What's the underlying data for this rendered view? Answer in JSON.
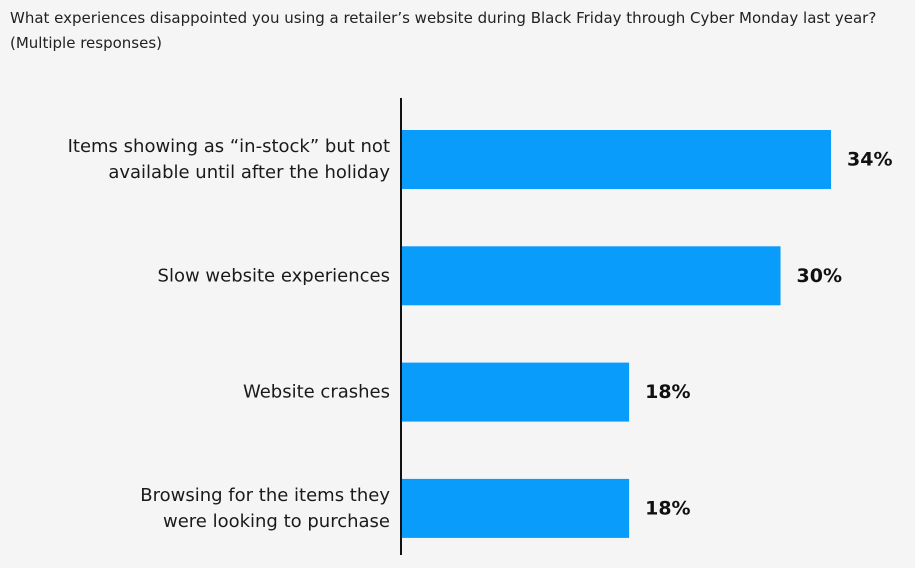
{
  "title": {
    "line1": "What experiences disappointed you using a retailer’s website during Black Friday through Cyber Monday last year?",
    "line2": "(Multiple responses)"
  },
  "colors": {
    "bar": "#0a9cfa",
    "axis": "#111111",
    "label": "#1a1a1a",
    "value": "#111111"
  },
  "chart_data": {
    "type": "bar",
    "orientation": "horizontal",
    "title": "What experiences disappointed you using a retailer’s website during Black Friday through Cyber Monday last year? (Multiple responses)",
    "categories": [
      [
        "Items showing as “in-stock” but not",
        "available until after the holiday"
      ],
      [
        "Slow website experiences"
      ],
      [
        "Website crashes"
      ],
      [
        "Browsing for the items they",
        "were looking to purchase"
      ]
    ],
    "values": [
      34,
      30,
      18,
      18
    ],
    "value_labels": [
      "34%",
      "30%",
      "18%",
      "18%"
    ],
    "unit": "%",
    "xlim": [
      0,
      34
    ],
    "xlabel": "",
    "ylabel": "",
    "grid": false,
    "legend": "none"
  }
}
